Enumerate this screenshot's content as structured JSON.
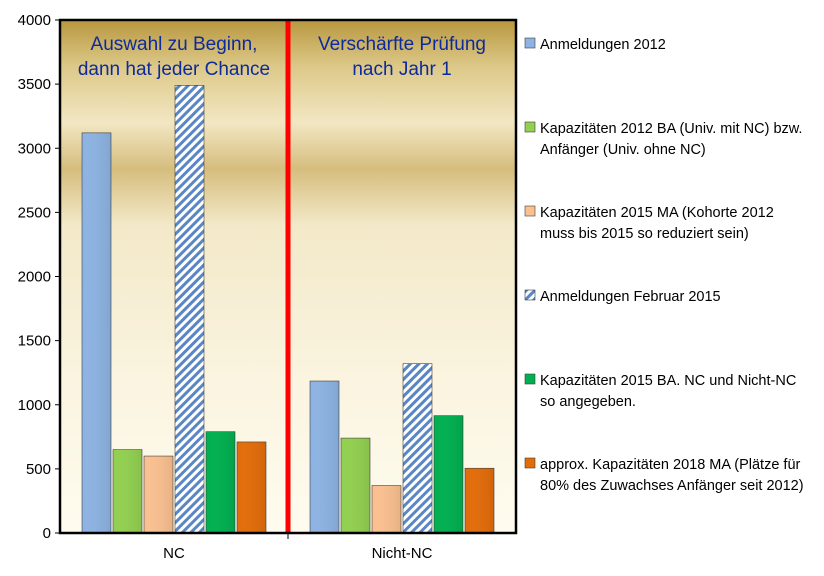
{
  "chart_data": {
    "type": "bar",
    "categories": [
      "NC",
      "Nicht-NC"
    ],
    "ylim": [
      0,
      4000
    ],
    "yticks": [
      0,
      500,
      1000,
      1500,
      2000,
      2500,
      3000,
      3500,
      4000
    ],
    "grid": false,
    "legend_placement": "right",
    "series": [
      {
        "name": "Anmeldungen 2012",
        "values": [
          3120,
          1185
        ],
        "color": "#8db3e2",
        "pattern": "solid"
      },
      {
        "name": "Kapazitäten 2012 BA (Univ. mit NC) bzw. Anfänger (Univ. ohne NC)",
        "values": [
          650,
          740
        ],
        "color": "#92d050",
        "pattern": "solid"
      },
      {
        "name": "Kapazitäten 2015 MA (Kohorte 2012 muss bis 2015 so reduziert sein)",
        "values": [
          600,
          370
        ],
        "color": "#fac090",
        "pattern": "solid"
      },
      {
        "name": "Anmeldungen Februar 2015",
        "values": [
          3490,
          1320
        ],
        "color": "#8db3e2",
        "pattern": "hatch"
      },
      {
        "name": "Kapazitäten 2015 BA. NC und Nicht-NC so angegeben.",
        "values": [
          790,
          915
        ],
        "color": "#00b050",
        "pattern": "solid"
      },
      {
        "name": "approx. Kapazitäten 2018 MA (Plätze für 80% des Zuwachses Anfänger seit 2012)",
        "values": [
          710,
          505
        ],
        "color": "#e36c09",
        "pattern": "solid"
      }
    ],
    "annotations": [
      {
        "lines": [
          "Auswahl zu Beginn,",
          "dann hat jeder Chance"
        ]
      },
      {
        "lines": [
          "Verschärfte Prüfung",
          "nach Jahr 1"
        ]
      }
    ],
    "divider_color": "#ff0000"
  }
}
